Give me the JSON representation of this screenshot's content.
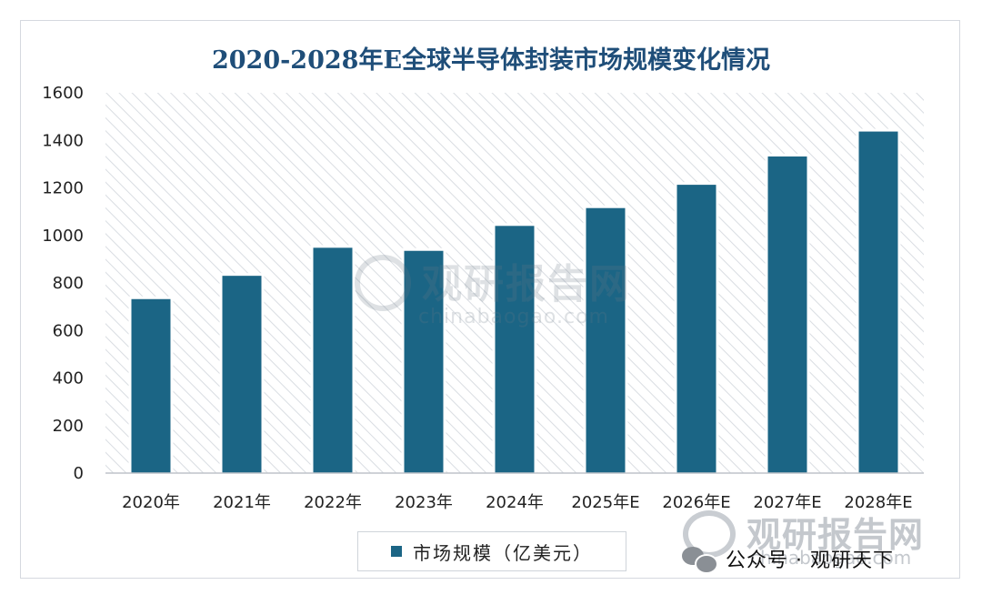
{
  "chart_data": {
    "type": "bar",
    "title": "2020-2028年E全球半导体封装市场规模变化情况",
    "categories": [
      "2020年",
      "2021年",
      "2022年",
      "2023年",
      "2024年",
      "2025年E",
      "2026年E",
      "2027年E",
      "2028年E"
    ],
    "series": [
      {
        "name": "市场规模（亿美元）",
        "values": [
          732,
          830,
          948,
          935,
          1040,
          1115,
          1213,
          1332,
          1437
        ]
      }
    ],
    "ylim": [
      0,
      1600
    ],
    "yticks": [
      "0",
      "200",
      "400",
      "600",
      "800",
      "1000",
      "1200",
      "1400",
      "1600"
    ],
    "grid": false,
    "legend_position": "bottom",
    "bar_color": "#1b6585",
    "plot_background": "diagonal-hatch"
  },
  "watermarks": {
    "center_cn": "观研报告网",
    "center_en": "chinabaogao.com",
    "corner_cn": "观研报告网",
    "corner_en": "chinabaogao.com",
    "wechat": "公众号 · 观研天下"
  }
}
